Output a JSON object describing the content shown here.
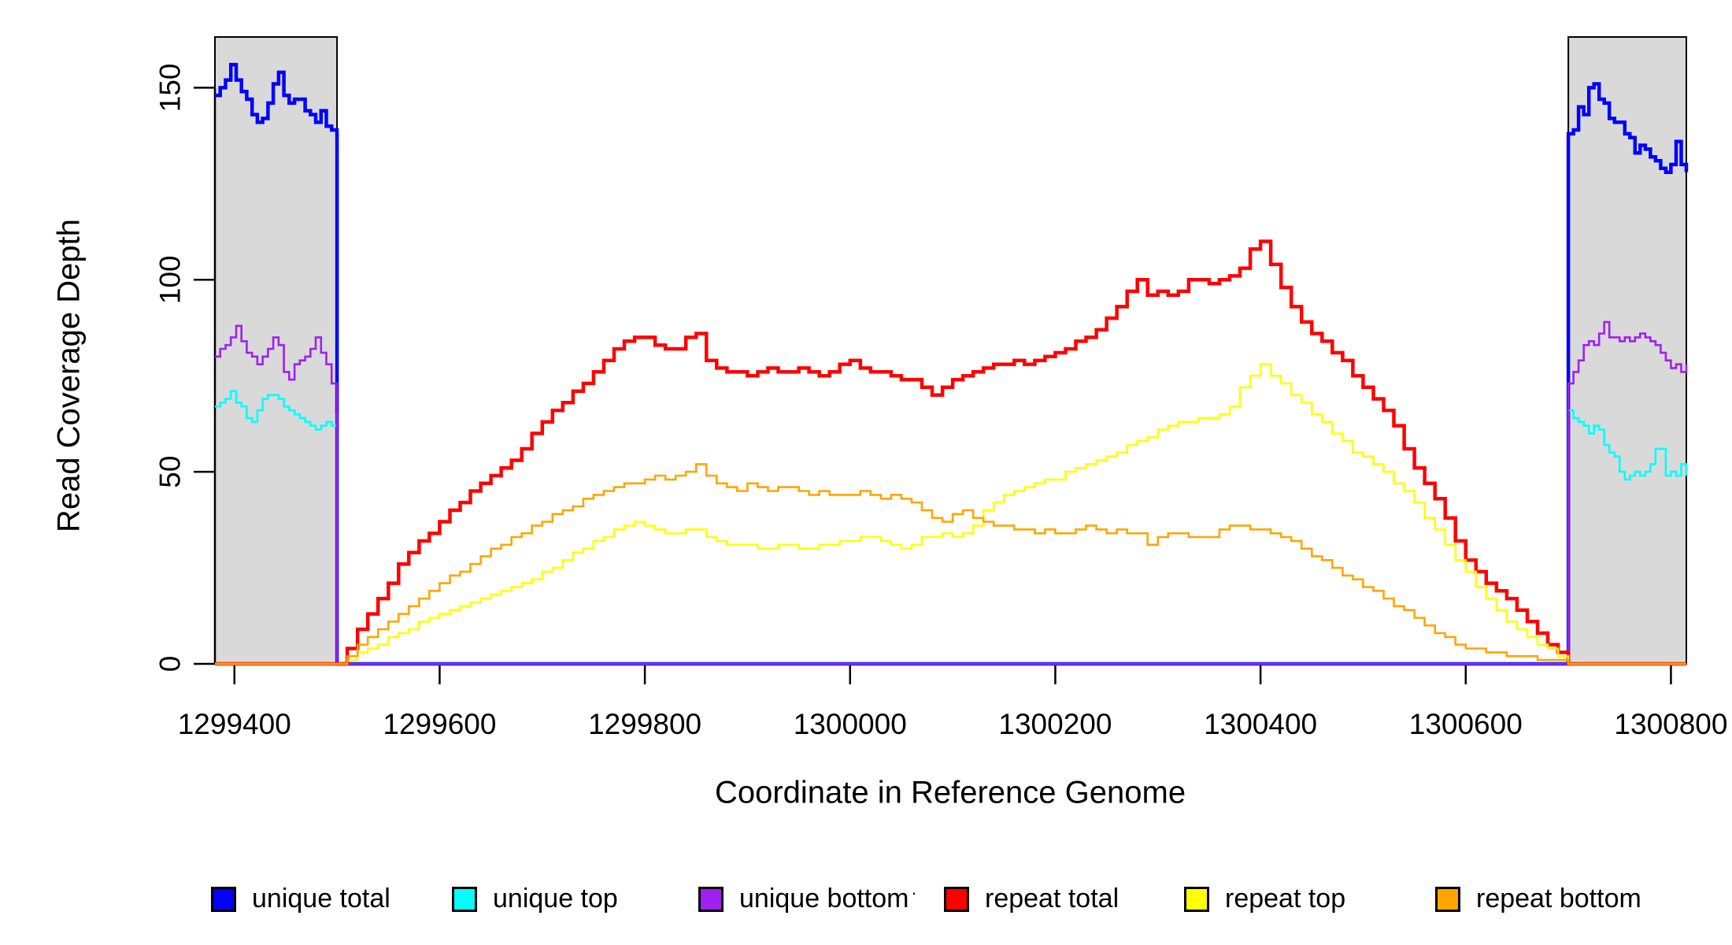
{
  "figure": {
    "background": "#FFFFFF"
  },
  "axes": {
    "xlabel": "Coordinate in Reference Genome",
    "ylabel": "Read Coverage Depth",
    "xlim": [
      1299381,
      1300815
    ],
    "ylim": [
      0,
      163.2
    ],
    "xticks": {
      "values": [
        1299400,
        1299600,
        1299800,
        1300000,
        1300200,
        1300400,
        1300600,
        1300800
      ],
      "labels": [
        "1299400",
        "1299600",
        "1299800",
        "1300000",
        "1300200",
        "1300400",
        "1300600",
        "1300800"
      ]
    },
    "yticks": {
      "values": [
        0,
        50,
        100,
        150
      ],
      "labels": [
        "0",
        "50",
        "100",
        "150"
      ]
    },
    "axis_color": "#000000"
  },
  "shaded_regions": [
    {
      "x_start": 1299381,
      "x_end": 1299500,
      "fill": "#D9D9D9",
      "border": "#000000"
    },
    {
      "x_start": 1300700,
      "x_end": 1300815,
      "fill": "#D9D9D9",
      "border": "#000000"
    }
  ],
  "legend": {
    "items": [
      {
        "label": "unique total",
        "color": "#0000FF"
      },
      {
        "label": "unique top",
        "color": "#00FFFF"
      },
      {
        "label": "unique bottom",
        "color": "#A020F0"
      },
      {
        "label": "repeat total",
        "color": "#FF0000"
      },
      {
        "label": "repeat top",
        "color": "#FFFF00"
      },
      {
        "label": "repeat bottom",
        "color": "#FFA500"
      }
    ],
    "stray_mark": "."
  },
  "chart_data": {
    "type": "line",
    "step": true,
    "title": "",
    "xlabel": "Coordinate in Reference Genome",
    "ylabel": "Read Coverage Depth",
    "xlim": [
      1299381,
      1300815
    ],
    "ylim": [
      0,
      163.2
    ],
    "grid": false,
    "legend_position": "bottom",
    "series": [
      {
        "name": "unique total",
        "color": "#0000FF",
        "width": 4.5,
        "segments": [
          {
            "x0": 1299381,
            "dx": 5.17,
            "v": [
              148,
              150,
              152,
              156,
              152,
              149,
              147,
              143,
              141,
              142,
              146,
              151,
              154,
              148,
              146,
              147,
              147,
              144,
              143,
              141,
              144,
              140,
              139,
              138
            ]
          },
          {
            "x0": 1299500,
            "dx": 1200,
            "v": [
              0,
              0
            ]
          },
          {
            "x0": 1300700,
            "dx": 5,
            "v": [
              138,
              139,
              145,
              143,
              150,
              151,
              147,
              146,
              142,
              141,
              141,
              138,
              137,
              133,
              135,
              134,
              132,
              131,
              129,
              128,
              130,
              136,
              130,
              128
            ]
          }
        ]
      },
      {
        "name": "unique top",
        "color": "#00FFFF",
        "width": 2.6,
        "segments": [
          {
            "x0": 1299381,
            "dx": 5.17,
            "v": [
              67,
              68,
              69,
              71,
              68,
              67,
              64,
              63,
              66,
              69,
              70,
              70,
              69,
              67,
              66,
              65,
              64,
              63,
              62,
              61,
              62,
              63,
              62,
              65
            ]
          },
          {
            "x0": 1299500,
            "dx": 1200,
            "v": [
              0,
              0
            ]
          },
          {
            "x0": 1300700,
            "dx": 5,
            "v": [
              66,
              64,
              63,
              62,
              60,
              62,
              61,
              57,
              55,
              54,
              50,
              48,
              49,
              50,
              49,
              50,
              52,
              56,
              56,
              49,
              50,
              49,
              52,
              49
            ]
          }
        ]
      },
      {
        "name": "unique bottom",
        "color": "#A020F0",
        "width": 2.6,
        "segments": [
          {
            "x0": 1299381,
            "dx": 5.17,
            "v": [
              80,
              82,
              83,
              85,
              88,
              84,
              81,
              80,
              78,
              80,
              82,
              85,
              83,
              76,
              74,
              78,
              79,
              80,
              82,
              85,
              81,
              78,
              73,
              71
            ]
          },
          {
            "x0": 1299500,
            "dx": 1200,
            "v": [
              0,
              0
            ]
          },
          {
            "x0": 1300700,
            "dx": 5,
            "v": [
              73,
              76,
              79,
              83,
              84,
              83,
              86,
              89,
              85,
              85,
              84,
              85,
              84,
              85,
              86,
              85,
              84,
              83,
              81,
              79,
              77,
              78,
              76,
              78
            ]
          }
        ]
      },
      {
        "name": "repeat total",
        "color": "#FF0000",
        "width": 4.5,
        "segments": [
          {
            "x0": 1299381,
            "dx": 119,
            "v": [
              0,
              0
            ]
          },
          {
            "x0": 1299500,
            "dx": 10,
            "v": [
              0,
              4,
              9,
              13,
              17,
              21,
              26,
              29,
              32,
              34,
              37,
              40,
              42,
              45,
              47,
              49,
              51,
              53,
              56,
              60,
              63,
              66,
              68,
              71,
              73,
              76,
              79,
              82,
              84,
              85,
              85,
              83,
              82,
              82,
              85,
              86,
              79,
              77,
              76,
              76,
              75,
              76,
              77,
              76,
              76,
              77,
              76,
              75,
              76,
              78,
              79,
              77,
              76,
              76,
              75,
              74,
              74,
              72,
              70,
              72,
              74,
              75,
              76,
              77,
              78,
              78,
              79,
              78,
              79,
              80,
              81,
              82,
              84,
              85,
              87,
              90,
              93,
              97,
              100,
              96,
              97,
              96,
              97,
              100,
              100,
              99,
              100,
              101,
              103,
              108,
              110,
              104,
              98,
              93,
              89,
              86,
              84,
              81,
              79,
              75,
              72,
              69,
              66,
              62,
              56,
              51,
              47,
              43,
              38,
              32,
              27,
              24,
              21,
              19,
              17,
              14,
              11,
              8,
              5,
              3,
              0
            ]
          },
          {
            "x0": 1300815,
            "dx": 0,
            "v": [
              0
            ]
          }
        ]
      },
      {
        "name": "repeat top",
        "color": "#FFFF00",
        "width": 2.6,
        "segments": [
          {
            "x0": 1299381,
            "dx": 119,
            "v": [
              0,
              0
            ]
          },
          {
            "x0": 1299500,
            "dx": 10,
            "v": [
              0,
              1,
              3,
              4,
              5,
              7,
              8,
              9,
              11,
              12,
              13,
              14,
              15,
              16,
              17,
              18,
              19,
              20,
              21,
              22,
              24,
              25,
              27,
              29,
              30,
              32,
              33,
              35,
              36,
              37,
              36,
              35,
              34,
              34,
              35,
              35,
              33,
              32,
              31,
              31,
              31,
              30,
              30,
              31,
              31,
              30,
              30,
              31,
              31,
              32,
              32,
              33,
              33,
              32,
              31,
              30,
              31,
              33,
              33,
              34,
              33,
              34,
              36,
              40,
              42,
              44,
              45,
              46,
              47,
              48,
              48,
              50,
              51,
              52,
              53,
              54,
              55,
              57,
              58,
              59,
              61,
              62,
              63,
              63,
              64,
              64,
              65,
              67,
              72,
              75,
              78,
              75,
              73,
              70,
              68,
              65,
              63,
              60,
              58,
              55,
              54,
              52,
              50,
              47,
              45,
              42,
              38,
              35,
              31,
              27,
              24,
              20,
              17,
              14,
              11,
              9,
              7,
              5,
              4,
              2,
              0
            ]
          },
          {
            "x0": 1300815,
            "dx": 0,
            "v": [
              0
            ]
          }
        ]
      },
      {
        "name": "repeat bottom",
        "color": "#FFA500",
        "width": 2.6,
        "segments": [
          {
            "x0": 1299381,
            "dx": 119,
            "v": [
              0,
              0
            ]
          },
          {
            "x0": 1299500,
            "dx": 10,
            "v": [
              0,
              2,
              5,
              7,
              9,
              11,
              13,
              15,
              17,
              19,
              21,
              23,
              24,
              26,
              28,
              30,
              31,
              33,
              34,
              36,
              37,
              39,
              40,
              41,
              43,
              44,
              45,
              46,
              47,
              47,
              48,
              49,
              48,
              49,
              50,
              52,
              49,
              47,
              46,
              45,
              47,
              46,
              45,
              46,
              46,
              45,
              44,
              45,
              44,
              44,
              44,
              45,
              44,
              43,
              44,
              43,
              42,
              40,
              38,
              37,
              39,
              40,
              38,
              37,
              36,
              36,
              35,
              35,
              34,
              35,
              34,
              34,
              35,
              36,
              35,
              34,
              35,
              34,
              34,
              31,
              33,
              34,
              34,
              33,
              33,
              33,
              35,
              36,
              36,
              35,
              35,
              34,
              33,
              32,
              30,
              28,
              27,
              25,
              23,
              22,
              20,
              19,
              17,
              15,
              14,
              12,
              10,
              8,
              7,
              5,
              4,
              4,
              3,
              3,
              2,
              2,
              2,
              1,
              1,
              1,
              0
            ]
          },
          {
            "x0": 1300815,
            "dx": 0,
            "v": [
              0
            ]
          }
        ]
      }
    ]
  }
}
